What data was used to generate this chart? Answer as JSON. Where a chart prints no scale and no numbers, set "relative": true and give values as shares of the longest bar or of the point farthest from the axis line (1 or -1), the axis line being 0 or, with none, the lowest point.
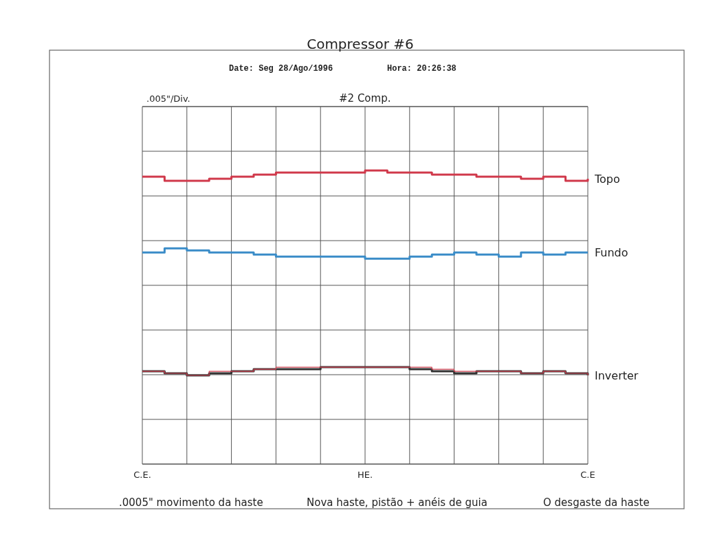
{
  "chart_data": {
    "type": "step",
    "title": "Compressor #6",
    "relative": true,
    "grid": true,
    "legend": false,
    "marker": "none",
    "line_style": "solid",
    "categories": [
      "C.E.",
      null,
      null,
      null,
      null,
      null,
      null,
      null,
      null,
      null,
      "HE.",
      null,
      null,
      null,
      null,
      null,
      null,
      null,
      null,
      null,
      "C.E"
    ],
    "series": [
      {
        "name": "Topo",
        "color": "#d0384a",
        "values": [
          0.97,
          0.95,
          0.95,
          0.96,
          0.97,
          0.98,
          0.99,
          0.99,
          0.99,
          0.99,
          1.0,
          0.99,
          0.99,
          0.98,
          0.98,
          0.97,
          0.97,
          0.96,
          0.97,
          0.95,
          0.96
        ]
      },
      {
        "name": "Fundo",
        "color": "#3a8cc8",
        "values": [
          0.6,
          0.62,
          0.61,
          0.6,
          0.6,
          0.59,
          0.58,
          0.58,
          0.58,
          0.58,
          0.57,
          0.57,
          0.58,
          0.59,
          0.6,
          0.59,
          0.58,
          0.6,
          0.59,
          0.6,
          0.6
        ]
      },
      {
        "name": "Inverter",
        "color": "#333333",
        "values": [
          0.02,
          0.01,
          0.0,
          0.01,
          0.02,
          0.03,
          0.03,
          0.03,
          0.04,
          0.04,
          0.04,
          0.04,
          0.03,
          0.02,
          0.01,
          0.02,
          0.02,
          0.01,
          0.02,
          0.01,
          0.0
        ]
      },
      {
        "color": "#d04050",
        "values": [
          0.02,
          0.01,
          0.0,
          0.02,
          0.02,
          0.03,
          0.04,
          0.04,
          0.04,
          0.04,
          0.04,
          0.04,
          0.04,
          0.03,
          0.02,
          0.02,
          0.02,
          0.01,
          0.02,
          0.01,
          0.0
        ]
      }
    ],
    "annotations": [
      ".005\"/Div.",
      "#2 Comp.",
      "Date: Seg 28/Ago/1996",
      "Hora: 20:26:38",
      ".0005\" movimento da haste",
      "Nova haste, pistão + anéis de guia",
      "O desgaste da haste"
    ]
  }
}
